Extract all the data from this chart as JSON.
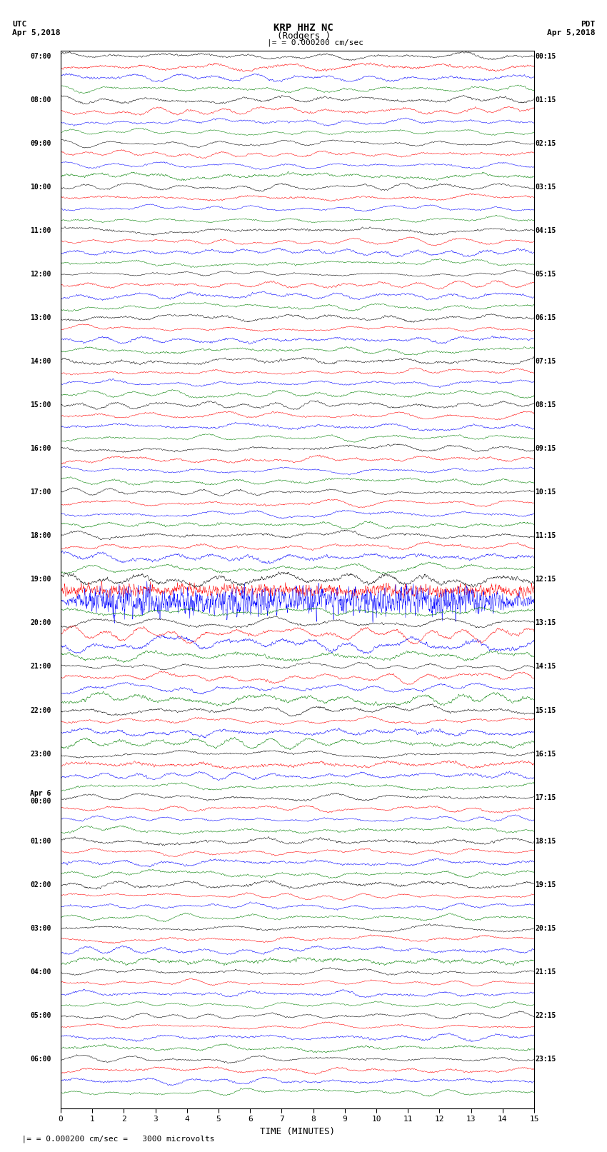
{
  "title_line1": "KRP HHZ NC",
  "title_line2": "(Rodgers )",
  "scale_label": "= 0.000200 cm/sec",
  "bottom_label": "= 0.000200 cm/sec =   3000 microvolts",
  "xlabel": "TIME (MINUTES)",
  "left_header": "UTC\nApr 5,2018",
  "right_header": "PDT\nApr 5,2018",
  "hour_labels_left": [
    "07:00",
    "08:00",
    "09:00",
    "10:00",
    "11:00",
    "12:00",
    "13:00",
    "14:00",
    "15:00",
    "16:00",
    "17:00",
    "18:00",
    "19:00",
    "20:00",
    "21:00",
    "22:00",
    "23:00",
    "Apr 6\n00:00",
    "01:00",
    "02:00",
    "03:00",
    "04:00",
    "05:00",
    "06:00"
  ],
  "hour_labels_right": [
    "00:15",
    "01:15",
    "02:15",
    "03:15",
    "04:15",
    "05:15",
    "06:15",
    "07:15",
    "08:15",
    "09:15",
    "10:15",
    "11:15",
    "12:15",
    "13:15",
    "14:15",
    "15:15",
    "16:15",
    "17:15",
    "18:15",
    "19:15",
    "20:15",
    "21:15",
    "22:15",
    "23:15"
  ],
  "trace_colors": [
    "black",
    "red",
    "blue",
    "green"
  ],
  "n_hours": 24,
  "traces_per_hour": 4,
  "x_min": 0,
  "x_max": 15,
  "bg_color": "white",
  "seed": 42,
  "eq_hour": 12,
  "eq_trace_idx": 2
}
